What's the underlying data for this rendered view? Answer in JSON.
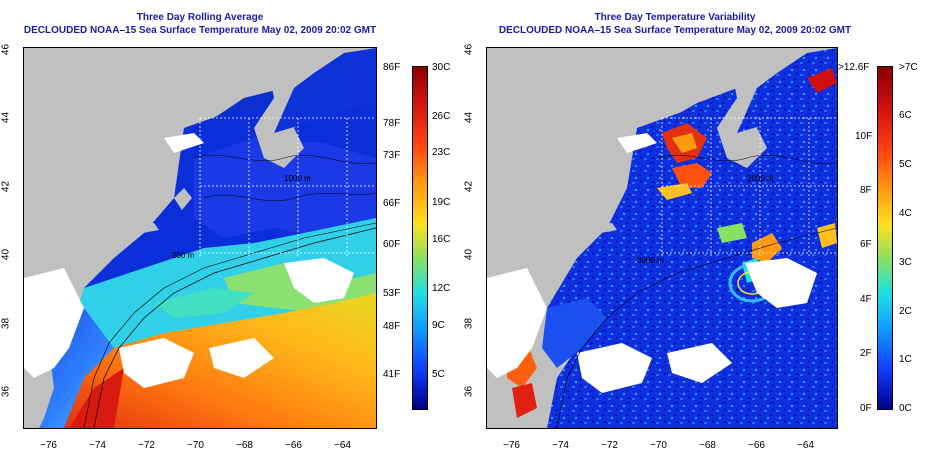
{
  "left_panel": {
    "title_line1": "Three Day Rolling Average",
    "title_line2": "DECLOUDED NOAA–15 Sea Surface Temperature May 02, 2009 20:02 GMT",
    "x_ticks": [
      "−76",
      "−74",
      "−72",
      "−70",
      "−68",
      "−66",
      "−64"
    ],
    "y_ticks": [
      "46",
      "44",
      "42",
      "40",
      "38",
      "36"
    ],
    "colorbar_f": [
      "86F",
      "78F",
      "73F",
      "66F",
      "60F",
      "53F",
      "48F",
      "41F"
    ],
    "colorbar_c": [
      "30C",
      "26C",
      "23C",
      "19C",
      "16C",
      "12C",
      "9C",
      "5C"
    ]
  },
  "right_panel": {
    "title_line1": "Three Day Temperature Variability",
    "title_line2": "DECLOUDED NOAA–15 Sea Surface Temperature May 02, 2009 20:02 GMT",
    "x_ticks": [
      "−76",
      "−74",
      "−72",
      "−70",
      "−68",
      "−66",
      "−64"
    ],
    "y_ticks": [
      "46",
      "44",
      "42",
      "40",
      "38",
      "36"
    ],
    "colorbar_f": [
      ">12.6F",
      "10F",
      "8F",
      "6F",
      "4F",
      "2F",
      "0F"
    ],
    "colorbar_c": [
      ">7C",
      "6C",
      "5C",
      "4C",
      "3C",
      "2C",
      "1C",
      "0C"
    ]
  },
  "contour_labels": [
    "200 m",
    "1000 m",
    "2000 m",
    "3000 m"
  ],
  "colors": {
    "land": "#c0c0c0",
    "cloud": "#ffffff",
    "title": "#1a1aa8"
  }
}
